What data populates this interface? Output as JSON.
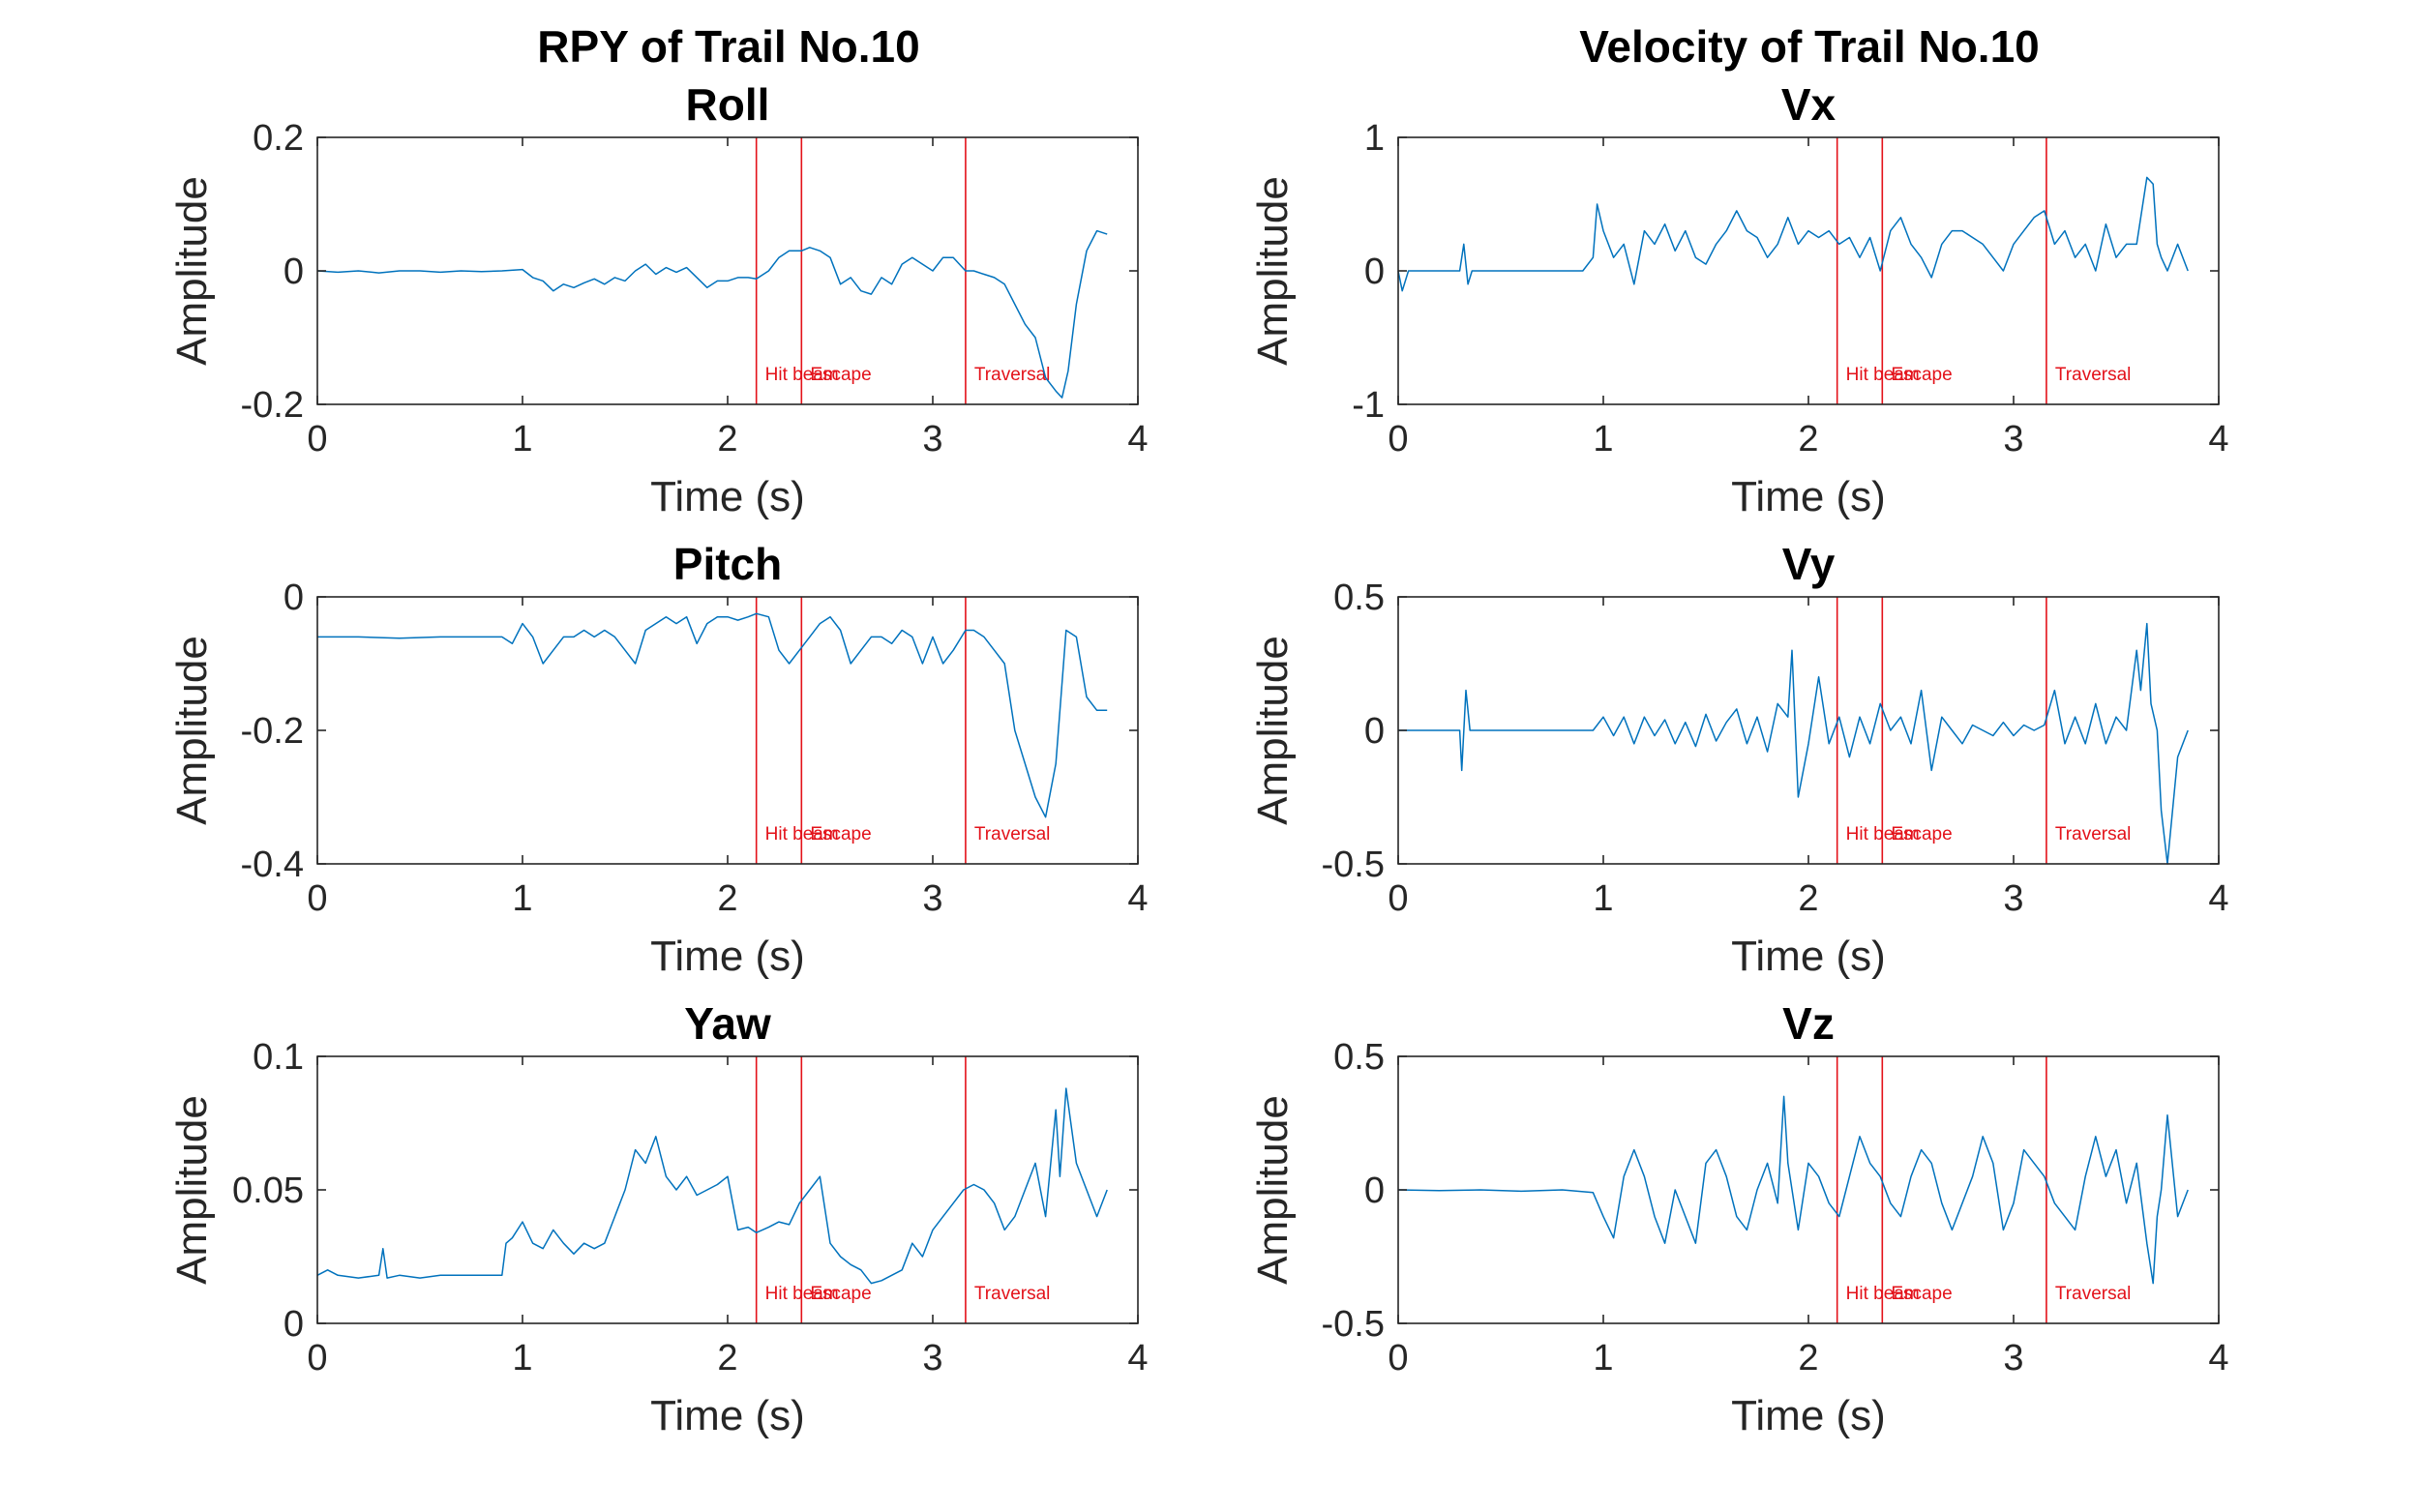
{
  "figure": {
    "column_titles": [
      "RPY of Trail No.10",
      "Velocity of Trail No.10"
    ],
    "line_color": "#0072BD",
    "event_color": "#E3121A"
  },
  "chart_data": [
    {
      "type": "line",
      "title": "Roll",
      "xlabel": "Time (s)",
      "ylabel": "Amplitude",
      "xlim": [
        0,
        4
      ],
      "ylim": [
        -0.2,
        0.2
      ],
      "xticks": [
        0,
        1,
        2,
        3,
        4
      ],
      "yticks": [
        -0.2,
        0,
        0.2
      ],
      "yticklabels": [
        "-0.2",
        "0",
        "0.2"
      ],
      "events": [
        {
          "x": 2.14,
          "label": "Hit beam"
        },
        {
          "x": 2.36,
          "label": "Escape"
        },
        {
          "x": 3.16,
          "label": "Traversal"
        }
      ],
      "grid": false,
      "series": [
        {
          "x": [
            0.0,
            0.1,
            0.2,
            0.3,
            0.4,
            0.5,
            0.6,
            0.7,
            0.8,
            0.9,
            1.0,
            1.05,
            1.1,
            1.15,
            1.2,
            1.25,
            1.3,
            1.35,
            1.4,
            1.45,
            1.5,
            1.55,
            1.6,
            1.65,
            1.7,
            1.75,
            1.8,
            1.85,
            1.9,
            1.95,
            2.0,
            2.05,
            2.1,
            2.14,
            2.2,
            2.25,
            2.3,
            2.36,
            2.4,
            2.45,
            2.5,
            2.55,
            2.6,
            2.65,
            2.7,
            2.75,
            2.8,
            2.85,
            2.9,
            2.95,
            3.0,
            3.05,
            3.1,
            3.16,
            3.2,
            3.25,
            3.3,
            3.35,
            3.4,
            3.45,
            3.5,
            3.55,
            3.6,
            3.63,
            3.66,
            3.7,
            3.75,
            3.8,
            3.85
          ],
          "y": [
            0.0,
            -0.002,
            0.0,
            -0.003,
            0.0,
            0.0,
            -0.002,
            0.0,
            -0.001,
            0.0,
            0.002,
            -0.01,
            -0.015,
            -0.03,
            -0.02,
            -0.025,
            -0.018,
            -0.012,
            -0.02,
            -0.01,
            -0.015,
            0.0,
            0.01,
            -0.005,
            0.005,
            -0.002,
            0.005,
            -0.01,
            -0.025,
            -0.015,
            -0.015,
            -0.01,
            -0.01,
            -0.012,
            0.0,
            0.02,
            0.03,
            0.03,
            0.035,
            0.03,
            0.02,
            -0.02,
            -0.01,
            -0.03,
            -0.035,
            -0.01,
            -0.02,
            0.01,
            0.02,
            0.01,
            0.0,
            0.02,
            0.02,
            0.0,
            0.0,
            -0.005,
            -0.01,
            -0.02,
            -0.05,
            -0.08,
            -0.1,
            -0.16,
            -0.18,
            -0.19,
            -0.15,
            -0.05,
            0.03,
            0.06,
            0.055
          ]
        }
      ]
    },
    {
      "type": "line",
      "title": "Vx",
      "xlabel": "Time (s)",
      "ylabel": "Amplitude",
      "xlim": [
        0,
        4
      ],
      "ylim": [
        -1,
        1
      ],
      "xticks": [
        0,
        1,
        2,
        3,
        4
      ],
      "yticks": [
        -1,
        0,
        1
      ],
      "yticklabels": [
        "-1",
        "0",
        "1"
      ],
      "events": [
        {
          "x": 2.14,
          "label": "Hit beam"
        },
        {
          "x": 2.36,
          "label": "Escape"
        },
        {
          "x": 3.16,
          "label": "Traversal"
        }
      ],
      "grid": false,
      "series": [
        {
          "x": [
            0.0,
            0.02,
            0.05,
            0.3,
            0.32,
            0.34,
            0.36,
            0.4,
            0.6,
            0.9,
            0.95,
            0.97,
            1.0,
            1.05,
            1.1,
            1.15,
            1.2,
            1.25,
            1.3,
            1.35,
            1.4,
            1.45,
            1.5,
            1.55,
            1.6,
            1.65,
            1.7,
            1.75,
            1.8,
            1.85,
            1.9,
            1.95,
            2.0,
            2.05,
            2.1,
            2.15,
            2.2,
            2.25,
            2.3,
            2.35,
            2.4,
            2.45,
            2.5,
            2.55,
            2.6,
            2.65,
            2.7,
            2.75,
            2.8,
            2.85,
            2.9,
            2.95,
            3.0,
            3.05,
            3.1,
            3.15,
            3.2,
            3.25,
            3.3,
            3.35,
            3.4,
            3.45,
            3.5,
            3.55,
            3.6,
            3.65,
            3.68,
            3.7,
            3.72,
            3.75,
            3.8,
            3.85
          ],
          "y": [
            0.0,
            -0.15,
            0.0,
            0.0,
            0.2,
            -0.1,
            0.0,
            0.0,
            0.0,
            0.0,
            0.1,
            0.5,
            0.3,
            0.1,
            0.2,
            -0.1,
            0.3,
            0.2,
            0.35,
            0.15,
            0.3,
            0.1,
            0.05,
            0.2,
            0.3,
            0.45,
            0.3,
            0.25,
            0.1,
            0.2,
            0.4,
            0.2,
            0.3,
            0.25,
            0.3,
            0.2,
            0.25,
            0.1,
            0.25,
            0.0,
            0.3,
            0.4,
            0.2,
            0.1,
            -0.05,
            0.2,
            0.3,
            0.3,
            0.25,
            0.2,
            0.1,
            0.0,
            0.2,
            0.3,
            0.4,
            0.45,
            0.2,
            0.3,
            0.1,
            0.2,
            0.0,
            0.35,
            0.1,
            0.2,
            0.2,
            0.7,
            0.65,
            0.2,
            0.1,
            0.0,
            0.2,
            0.0
          ]
        }
      ]
    },
    {
      "type": "line",
      "title": "Pitch",
      "xlabel": "Time (s)",
      "ylabel": "Amplitude",
      "xlim": [
        0,
        4
      ],
      "ylim": [
        -0.4,
        0
      ],
      "xticks": [
        0,
        1,
        2,
        3,
        4
      ],
      "yticks": [
        -0.4,
        -0.2,
        0
      ],
      "yticklabels": [
        "-0.4",
        "-0.2",
        "0"
      ],
      "events": [
        {
          "x": 2.14,
          "label": "Hit beam"
        },
        {
          "x": 2.36,
          "label": "Escape"
        },
        {
          "x": 3.16,
          "label": "Traversal"
        }
      ],
      "grid": false,
      "series": [
        {
          "x": [
            0.0,
            0.2,
            0.4,
            0.6,
            0.8,
            0.9,
            0.95,
            1.0,
            1.05,
            1.1,
            1.15,
            1.2,
            1.25,
            1.3,
            1.35,
            1.4,
            1.45,
            1.5,
            1.55,
            1.6,
            1.65,
            1.7,
            1.75,
            1.8,
            1.85,
            1.9,
            1.95,
            2.0,
            2.05,
            2.1,
            2.14,
            2.2,
            2.25,
            2.3,
            2.35,
            2.4,
            2.45,
            2.5,
            2.55,
            2.6,
            2.65,
            2.7,
            2.75,
            2.8,
            2.85,
            2.9,
            2.95,
            3.0,
            3.05,
            3.1,
            3.16,
            3.2,
            3.25,
            3.3,
            3.35,
            3.4,
            3.45,
            3.5,
            3.55,
            3.6,
            3.65,
            3.7,
            3.75,
            3.8,
            3.85
          ],
          "y": [
            -0.06,
            -0.06,
            -0.062,
            -0.06,
            -0.06,
            -0.06,
            -0.07,
            -0.04,
            -0.06,
            -0.1,
            -0.08,
            -0.06,
            -0.06,
            -0.05,
            -0.06,
            -0.05,
            -0.06,
            -0.08,
            -0.1,
            -0.05,
            -0.04,
            -0.03,
            -0.04,
            -0.03,
            -0.07,
            -0.04,
            -0.03,
            -0.03,
            -0.035,
            -0.03,
            -0.025,
            -0.03,
            -0.08,
            -0.1,
            -0.08,
            -0.06,
            -0.04,
            -0.03,
            -0.05,
            -0.1,
            -0.08,
            -0.06,
            -0.06,
            -0.07,
            -0.05,
            -0.06,
            -0.1,
            -0.06,
            -0.1,
            -0.08,
            -0.05,
            -0.05,
            -0.06,
            -0.08,
            -0.1,
            -0.2,
            -0.25,
            -0.3,
            -0.33,
            -0.25,
            -0.05,
            -0.06,
            -0.15,
            -0.17,
            -0.17
          ]
        }
      ]
    },
    {
      "type": "line",
      "title": "Vy",
      "xlabel": "Time (s)",
      "ylabel": "Amplitude",
      "xlim": [
        0,
        4
      ],
      "ylim": [
        -0.5,
        0.5
      ],
      "xticks": [
        0,
        1,
        2,
        3,
        4
      ],
      "yticks": [
        -0.5,
        0,
        0.5
      ],
      "yticklabels": [
        "-0.5",
        "0",
        "0.5"
      ],
      "events": [
        {
          "x": 2.14,
          "label": "Hit beam"
        },
        {
          "x": 2.36,
          "label": "Escape"
        },
        {
          "x": 3.16,
          "label": "Traversal"
        }
      ],
      "grid": false,
      "series": [
        {
          "x": [
            0.0,
            0.2,
            0.3,
            0.31,
            0.33,
            0.35,
            0.4,
            0.6,
            0.8,
            0.95,
            1.0,
            1.05,
            1.1,
            1.15,
            1.2,
            1.25,
            1.3,
            1.35,
            1.4,
            1.45,
            1.5,
            1.55,
            1.6,
            1.65,
            1.7,
            1.75,
            1.8,
            1.85,
            1.9,
            1.92,
            1.95,
            2.0,
            2.05,
            2.1,
            2.15,
            2.2,
            2.25,
            2.3,
            2.35,
            2.4,
            2.45,
            2.5,
            2.55,
            2.6,
            2.65,
            2.7,
            2.75,
            2.8,
            2.85,
            2.9,
            2.95,
            3.0,
            3.05,
            3.1,
            3.15,
            3.2,
            3.25,
            3.3,
            3.35,
            3.4,
            3.45,
            3.5,
            3.55,
            3.6,
            3.62,
            3.65,
            3.67,
            3.7,
            3.72,
            3.75,
            3.8,
            3.85
          ],
          "y": [
            0.0,
            0.0,
            0.0,
            -0.15,
            0.15,
            0.0,
            0.0,
            0.0,
            0.0,
            0.0,
            0.05,
            -0.02,
            0.05,
            -0.05,
            0.05,
            -0.02,
            0.04,
            -0.05,
            0.03,
            -0.06,
            0.06,
            -0.04,
            0.03,
            0.08,
            -0.05,
            0.05,
            -0.08,
            0.1,
            0.05,
            0.3,
            -0.25,
            -0.05,
            0.2,
            -0.05,
            0.05,
            -0.1,
            0.05,
            -0.05,
            0.1,
            0.0,
            0.05,
            -0.05,
            0.15,
            -0.15,
            0.05,
            0.0,
            -0.05,
            0.02,
            0.0,
            -0.02,
            0.03,
            -0.02,
            0.02,
            0.0,
            0.02,
            0.15,
            -0.05,
            0.05,
            -0.05,
            0.1,
            -0.05,
            0.05,
            0.0,
            0.3,
            0.15,
            0.4,
            0.1,
            0.0,
            -0.3,
            -0.5,
            -0.1,
            0.0
          ]
        }
      ]
    },
    {
      "type": "line",
      "title": "Yaw",
      "xlabel": "Time (s)",
      "ylabel": "Amplitude",
      "xlim": [
        0,
        4
      ],
      "ylim": [
        0,
        0.1
      ],
      "xticks": [
        0,
        1,
        2,
        3,
        4
      ],
      "yticks": [
        0,
        0.05,
        0.1
      ],
      "yticklabels": [
        "0",
        "0.05",
        "0.1"
      ],
      "events": [
        {
          "x": 2.14,
          "label": "Hit beam"
        },
        {
          "x": 2.36,
          "label": "Escape"
        },
        {
          "x": 3.16,
          "label": "Traversal"
        }
      ],
      "grid": false,
      "series": [
        {
          "x": [
            0.0,
            0.05,
            0.1,
            0.2,
            0.3,
            0.32,
            0.34,
            0.4,
            0.5,
            0.6,
            0.7,
            0.8,
            0.9,
            0.92,
            0.95,
            1.0,
            1.05,
            1.1,
            1.15,
            1.2,
            1.25,
            1.3,
            1.35,
            1.4,
            1.45,
            1.5,
            1.55,
            1.6,
            1.65,
            1.7,
            1.75,
            1.8,
            1.85,
            1.9,
            1.95,
            2.0,
            2.05,
            2.1,
            2.14,
            2.2,
            2.25,
            2.3,
            2.35,
            2.4,
            2.45,
            2.5,
            2.55,
            2.6,
            2.65,
            2.7,
            2.75,
            2.8,
            2.85,
            2.9,
            2.95,
            3.0,
            3.05,
            3.1,
            3.15,
            3.2,
            3.25,
            3.3,
            3.35,
            3.4,
            3.45,
            3.5,
            3.55,
            3.6,
            3.62,
            3.65,
            3.7,
            3.75,
            3.8,
            3.85
          ],
          "y": [
            0.018,
            0.02,
            0.018,
            0.017,
            0.018,
            0.028,
            0.017,
            0.018,
            0.017,
            0.018,
            0.018,
            0.018,
            0.018,
            0.03,
            0.032,
            0.038,
            0.03,
            0.028,
            0.035,
            0.03,
            0.026,
            0.03,
            0.028,
            0.03,
            0.04,
            0.05,
            0.065,
            0.06,
            0.07,
            0.055,
            0.05,
            0.055,
            0.048,
            0.05,
            0.052,
            0.055,
            0.035,
            0.036,
            0.034,
            0.036,
            0.038,
            0.037,
            0.045,
            0.05,
            0.055,
            0.03,
            0.025,
            0.022,
            0.02,
            0.015,
            0.016,
            0.018,
            0.02,
            0.03,
            0.025,
            0.035,
            0.04,
            0.045,
            0.05,
            0.052,
            0.05,
            0.045,
            0.035,
            0.04,
            0.05,
            0.06,
            0.04,
            0.08,
            0.055,
            0.088,
            0.06,
            0.05,
            0.04,
            0.05
          ]
        }
      ]
    },
    {
      "type": "line",
      "title": "Vz",
      "xlabel": "Time (s)",
      "ylabel": "Amplitude",
      "xlim": [
        0,
        4
      ],
      "ylim": [
        -0.5,
        0.5
      ],
      "xticks": [
        0,
        1,
        2,
        3,
        4
      ],
      "yticks": [
        -0.5,
        0,
        0.5
      ],
      "yticklabels": [
        "-0.5",
        "0",
        "0.5"
      ],
      "events": [
        {
          "x": 2.14,
          "label": "Hit beam"
        },
        {
          "x": 2.36,
          "label": "Escape"
        },
        {
          "x": 3.16,
          "label": "Traversal"
        }
      ],
      "grid": false,
      "series": [
        {
          "x": [
            0.0,
            0.2,
            0.4,
            0.6,
            0.8,
            0.95,
            1.0,
            1.05,
            1.1,
            1.15,
            1.2,
            1.25,
            1.3,
            1.35,
            1.4,
            1.45,
            1.5,
            1.55,
            1.6,
            1.65,
            1.7,
            1.75,
            1.8,
            1.85,
            1.88,
            1.9,
            1.95,
            2.0,
            2.05,
            2.1,
            2.15,
            2.2,
            2.25,
            2.3,
            2.35,
            2.4,
            2.45,
            2.5,
            2.55,
            2.6,
            2.65,
            2.7,
            2.75,
            2.8,
            2.85,
            2.9,
            2.95,
            3.0,
            3.05,
            3.1,
            3.15,
            3.2,
            3.25,
            3.3,
            3.35,
            3.4,
            3.45,
            3.5,
            3.55,
            3.6,
            3.65,
            3.68,
            3.7,
            3.72,
            3.75,
            3.78,
            3.8,
            3.85
          ],
          "y": [
            0.0,
            -0.003,
            0.0,
            -0.005,
            0.0,
            -0.01,
            -0.1,
            -0.18,
            0.05,
            0.15,
            0.05,
            -0.1,
            -0.2,
            0.0,
            -0.1,
            -0.2,
            0.1,
            0.15,
            0.05,
            -0.1,
            -0.15,
            0.0,
            0.1,
            -0.05,
            0.35,
            0.1,
            -0.15,
            0.1,
            0.05,
            -0.05,
            -0.1,
            0.05,
            0.2,
            0.1,
            0.05,
            -0.05,
            -0.1,
            0.05,
            0.15,
            0.1,
            -0.05,
            -0.15,
            -0.05,
            0.05,
            0.2,
            0.1,
            -0.15,
            -0.05,
            0.15,
            0.1,
            0.05,
            -0.05,
            -0.1,
            -0.15,
            0.05,
            0.2,
            0.05,
            0.15,
            -0.05,
            0.1,
            -0.2,
            -0.35,
            -0.1,
            0.0,
            0.28,
            0.05,
            -0.1,
            0.0
          ]
        }
      ]
    }
  ]
}
